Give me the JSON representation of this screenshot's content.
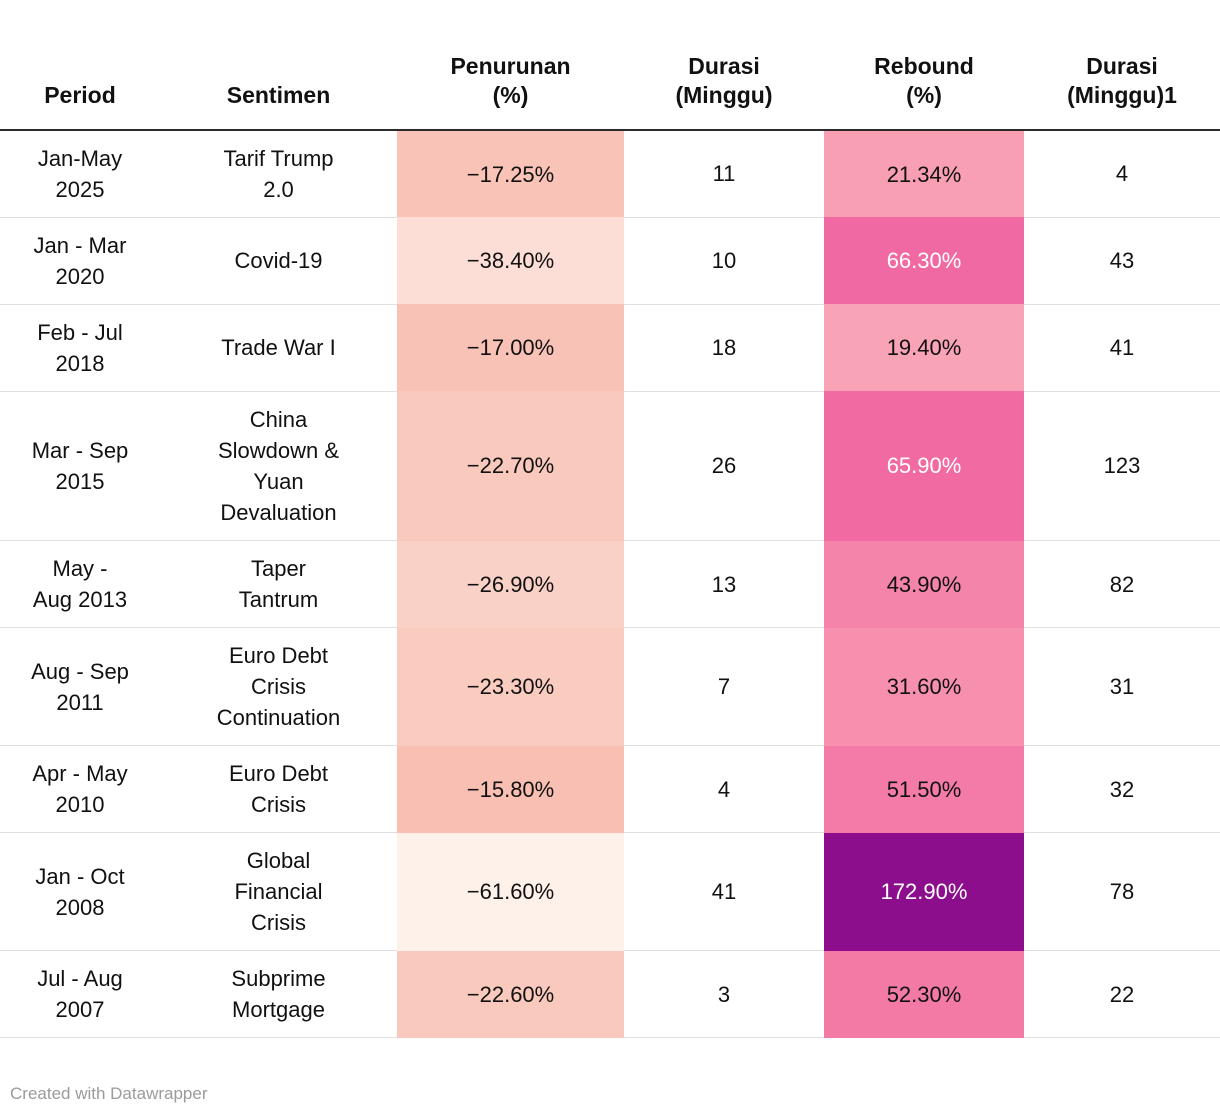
{
  "table": {
    "columns": [
      {
        "key": "period",
        "label": "Period"
      },
      {
        "key": "sentimen",
        "label": "Sentimen"
      },
      {
        "key": "penurunan",
        "label": "Penurunan\n(%)"
      },
      {
        "key": "durasi1",
        "label": "Durasi\n(Minggu)"
      },
      {
        "key": "rebound",
        "label": "Rebound\n(%)"
      },
      {
        "key": "durasi2",
        "label": "Durasi\n(Minggu)1"
      }
    ],
    "rows": [
      {
        "cells": {
          "period": "Jan-May\n2025",
          "sentimen": "Tarif Trump\n2.0",
          "penurunan": "−17.25%",
          "durasi1": "11",
          "rebound": "21.34%",
          "durasi2": "4"
        },
        "bg": {
          "penurunan": "#f9c3b7",
          "rebound": "#f99fb3"
        },
        "fg": {
          "rebound": "#111111"
        }
      },
      {
        "cells": {
          "period": "Jan - Mar\n2020",
          "sentimen": "Covid-19",
          "penurunan": "−38.40%",
          "durasi1": "10",
          "rebound": "66.30%",
          "durasi2": "43"
        },
        "bg": {
          "penurunan": "#fcded6",
          "rebound": "#f169a2"
        },
        "fg": {
          "rebound": "#ffffff"
        }
      },
      {
        "cells": {
          "period": "Feb - Jul\n2018",
          "sentimen": "Trade War I",
          "penurunan": "−17.00%",
          "durasi1": "18",
          "rebound": "19.40%",
          "durasi2": "41"
        },
        "bg": {
          "penurunan": "#f9c2b6",
          "rebound": "#f9a3b6"
        },
        "fg": {
          "rebound": "#111111"
        }
      },
      {
        "cells": {
          "period": "Mar - Sep\n2015",
          "sentimen": "China\nSlowdown &\nYuan\nDevaluation",
          "penurunan": "−22.70%",
          "durasi1": "26",
          "rebound": "65.90%",
          "durasi2": "123"
        },
        "bg": {
          "penurunan": "#f9c9bd",
          "rebound": "#f16aa2"
        },
        "fg": {
          "rebound": "#ffffff"
        }
      },
      {
        "cells": {
          "period": "May -\nAug 2013",
          "sentimen": "Taper\nTantrum",
          "penurunan": "−26.90%",
          "durasi1": "13",
          "rebound": "43.90%",
          "durasi2": "82"
        },
        "bg": {
          "penurunan": "#fad1c6",
          "rebound": "#f584aa"
        },
        "fg": {
          "rebound": "#111111"
        }
      },
      {
        "cells": {
          "period": "Aug - Sep\n2011",
          "sentimen": "Euro Debt\nCrisis\nContinuation",
          "penurunan": "−23.30%",
          "durasi1": "7",
          "rebound": "31.60%",
          "durasi2": "31"
        },
        "bg": {
          "penurunan": "#faccc0",
          "rebound": "#f790ae"
        },
        "fg": {
          "rebound": "#111111"
        }
      },
      {
        "cells": {
          "period": "Apr - May\n2010",
          "sentimen": "Euro Debt\nCrisis",
          "penurunan": "−15.80%",
          "durasi1": "4",
          "rebound": "51.50%",
          "durasi2": "32"
        },
        "bg": {
          "penurunan": "#f8bfb2",
          "rebound": "#f47ba7"
        },
        "fg": {
          "rebound": "#111111"
        }
      },
      {
        "cells": {
          "period": "Jan - Oct\n2008",
          "sentimen": "Global\nFinancial\nCrisis",
          "penurunan": "−61.60%",
          "durasi1": "41",
          "rebound": "172.90%",
          "durasi2": "78"
        },
        "bg": {
          "penurunan": "#fdf1ea",
          "rebound": "#8d0e8d"
        },
        "fg": {
          "rebound": "#ffffff"
        }
      },
      {
        "cells": {
          "period": "Jul - Aug\n2007",
          "sentimen": "Subprime\nMortgage",
          "penurunan": "−22.60%",
          "durasi1": "3",
          "rebound": "52.30%",
          "durasi2": "22"
        },
        "bg": {
          "penurunan": "#f9c9bd",
          "rebound": "#f47aa6"
        },
        "fg": {
          "rebound": "#111111"
        }
      }
    ]
  },
  "footer": {
    "credit": "Created with Datawrapper"
  },
  "chart_data": {
    "type": "table",
    "title": "",
    "columns": [
      "Period",
      "Sentimen",
      "Penurunan (%)",
      "Durasi (Minggu)",
      "Rebound (%)",
      "Durasi (Minggu)1"
    ],
    "heatmap_columns": [
      "Penurunan (%)",
      "Rebound (%)"
    ],
    "rows": [
      [
        "Jan-May 2025",
        "Tarif Trump 2.0",
        -17.25,
        11,
        21.34,
        4
      ],
      [
        "Jan - Mar 2020",
        "Covid-19",
        -38.4,
        10,
        66.3,
        43
      ],
      [
        "Feb - Jul 2018",
        "Trade War I",
        -17.0,
        18,
        19.4,
        41
      ],
      [
        "Mar - Sep 2015",
        "China Slowdown & Yuan Devaluation",
        -22.7,
        26,
        65.9,
        123
      ],
      [
        "May - Aug 2013",
        "Taper Tantrum",
        -26.9,
        13,
        43.9,
        82
      ],
      [
        "Aug - Sep 2011",
        "Euro Debt Crisis Continuation",
        -23.3,
        7,
        31.6,
        31
      ],
      [
        "Apr - May 2010",
        "Euro Debt Crisis",
        -15.8,
        4,
        51.5,
        32
      ],
      [
        "Jan - Oct 2008",
        "Global Financial Crisis",
        -61.6,
        41,
        172.9,
        78
      ],
      [
        "Jul - Aug 2007",
        "Subprime Mortgage",
        -22.6,
        3,
        52.3,
        22
      ]
    ],
    "legend_position": "none",
    "grid": "row-separators",
    "credit": "Created with Datawrapper"
  }
}
